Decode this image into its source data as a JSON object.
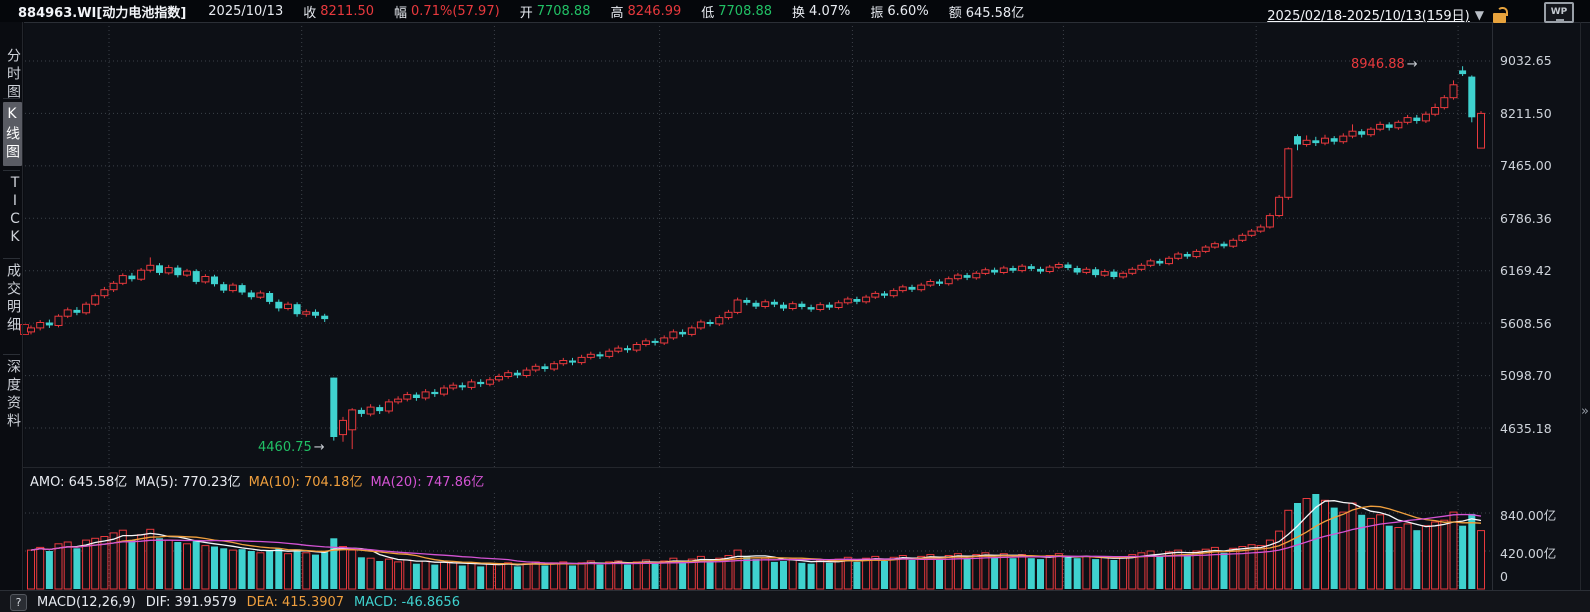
{
  "header": {
    "code": "884963.WI[动力电池指数]",
    "date": "2025/10/13",
    "fields": [
      {
        "label": "收",
        "value": "8211.50",
        "color": "red"
      },
      {
        "label": "幅",
        "value": "0.71%(57.97)",
        "color": "red"
      },
      {
        "label": "开",
        "value": "7708.88",
        "color": "green"
      },
      {
        "label": "高",
        "value": "8246.99",
        "color": "red"
      },
      {
        "label": "低",
        "value": "7708.88",
        "color": "green"
      },
      {
        "label": "换",
        "value": "4.07%",
        "color": "white"
      },
      {
        "label": "振",
        "value": "6.60%",
        "color": "white"
      },
      {
        "label": "额",
        "value": "645.58亿",
        "color": "white"
      }
    ],
    "wp_icon_text": "WP"
  },
  "sidebar": {
    "items": [
      {
        "label": "分时图",
        "active": false
      },
      {
        "label": "K线图",
        "active": true
      },
      {
        "label": "TICK",
        "active": false
      },
      {
        "label": "成交明细",
        "active": false
      },
      {
        "label": "深度资料",
        "active": false
      }
    ]
  },
  "toolbar": {
    "date_range": "2025/02/18-2025/10/13(159日)",
    "caret": "▼"
  },
  "price_pane": {
    "axis_labels": [
      "9032.65",
      "8211.50",
      "7465.00",
      "6786.36",
      "6169.42",
      "5608.56",
      "5098.70",
      "4635.18"
    ],
    "high_annotation": "8946.88",
    "low_annotation": "4460.75",
    "arrow": "→"
  },
  "volume_pane": {
    "legend": {
      "amo": "AMO: 645.58亿",
      "ma5": "MA(5): 770.23亿",
      "ma10": "MA(10): 704.18亿",
      "ma20": "MA(20): 747.86亿"
    },
    "axis_labels": [
      "840.00亿",
      "420.00亿",
      "0"
    ]
  },
  "macd_bar": {
    "help": "?",
    "name": "MACD(12,26,9)",
    "dif": "DIF: 391.9579",
    "dea": "DEA: 415.3907",
    "macd": "MACD: -46.8656"
  },
  "misc": {
    "expand_icon": "»"
  },
  "colors": {
    "up": "#e8393d",
    "down": "#3fd2cf",
    "green": "#21c065",
    "vol_ma5": "#f5f6f8",
    "vol_ma10": "#ef9f3e",
    "vol_ma20": "#d353d3",
    "grid": "#3d424a",
    "background": "#0d1016"
  },
  "chart_data": {
    "type": "candlestick",
    "title": "884963.WI 动力电池指数 日K",
    "date_range": "2025/02/18-2025/10/13",
    "days": 159,
    "scale": "log",
    "price_axis": [
      9032.65,
      8211.5,
      7465.0,
      6786.36,
      6169.42,
      5608.56,
      5098.7,
      4635.18
    ],
    "volume_axis_yi": [
      840,
      420,
      0
    ],
    "month_start_indices": [
      10,
      31,
      52,
      70,
      91,
      114,
      135,
      157
    ],
    "period_high": 8946.88,
    "period_low": 4460.75,
    "last_day": {
      "open": 7708.88,
      "high": 8246.99,
      "low": 7708.88,
      "close": 8211.5,
      "change_pct": 0.71,
      "change": 57.97,
      "turnover_pct": 4.07,
      "amplitude_pct": 6.6,
      "amount_yi": 645.58
    },
    "volume_ma_yi": {
      "ma5": 770.23,
      "ma10": 704.18,
      "ma20": 747.86
    },
    "macd": {
      "params": [
        12,
        26,
        9
      ],
      "dif": 391.9579,
      "dea": 415.3907,
      "macd": -46.8656
    },
    "candles_ohlcv": [
      [
        5520,
        5585,
        5495,
        5560,
        430
      ],
      [
        5560,
        5640,
        5535,
        5615,
        460
      ],
      [
        5615,
        5645,
        5560,
        5585,
        420
      ],
      [
        5585,
        5700,
        5565,
        5680,
        500
      ],
      [
        5680,
        5770,
        5660,
        5745,
        520
      ],
      [
        5745,
        5775,
        5690,
        5715,
        450
      ],
      [
        5715,
        5830,
        5695,
        5805,
        540
      ],
      [
        5805,
        5920,
        5785,
        5895,
        560
      ],
      [
        5895,
        5990,
        5870,
        5960,
        580
      ],
      [
        5960,
        6055,
        5935,
        6030,
        620
      ],
      [
        6030,
        6140,
        6010,
        6115,
        650
      ],
      [
        6115,
        6145,
        6050,
        6075,
        540
      ],
      [
        6075,
        6200,
        6055,
        6175,
        600
      ],
      [
        6175,
        6320,
        6150,
        6230,
        660
      ],
      [
        6230,
        6255,
        6120,
        6145,
        560
      ],
      [
        6145,
        6235,
        6125,
        6205,
        540
      ],
      [
        6205,
        6230,
        6095,
        6120,
        520
      ],
      [
        6120,
        6190,
        6100,
        6165,
        500
      ],
      [
        6165,
        6185,
        6020,
        6045,
        530
      ],
      [
        6045,
        6130,
        6025,
        6105,
        480
      ],
      [
        6105,
        6125,
        5995,
        6020,
        470
      ],
      [
        6020,
        6045,
        5925,
        5950,
        450
      ],
      [
        5950,
        6035,
        5930,
        6010,
        430
      ],
      [
        6010,
        6030,
        5905,
        5930,
        440
      ],
      [
        5930,
        5955,
        5855,
        5880,
        420
      ],
      [
        5880,
        5950,
        5860,
        5925,
        400
      ],
      [
        5925,
        5945,
        5805,
        5830,
        430
      ],
      [
        5830,
        5855,
        5730,
        5760,
        450
      ],
      [
        5760,
        5830,
        5740,
        5805,
        390
      ],
      [
        5805,
        5825,
        5675,
        5700,
        440
      ],
      [
        5700,
        5750,
        5675,
        5725,
        400
      ],
      [
        5725,
        5750,
        5660,
        5685,
        380
      ],
      [
        5685,
        5705,
        5620,
        5650,
        420
      ],
      [
        5080,
        5080,
        4530,
        4560,
        560
      ],
      [
        4580,
        4730,
        4520,
        4700,
        470
      ],
      [
        4620,
        4805,
        4460.75,
        4790,
        430
      ],
      [
        4790,
        4810,
        4730,
        4755,
        350
      ],
      [
        4755,
        4840,
        4735,
        4815,
        340
      ],
      [
        4815,
        4835,
        4755,
        4780,
        310
      ],
      [
        4780,
        4885,
        4760,
        4860,
        330
      ],
      [
        4860,
        4910,
        4840,
        4885,
        300
      ],
      [
        4885,
        4950,
        4865,
        4925,
        320
      ],
      [
        4925,
        4945,
        4870,
        4895,
        280
      ],
      [
        4895,
        4975,
        4875,
        4950,
        310
      ],
      [
        4950,
        4975,
        4905,
        4930,
        270
      ],
      [
        4930,
        5010,
        4910,
        4985,
        300
      ],
      [
        4985,
        5035,
        4965,
        5010,
        290
      ],
      [
        5010,
        5035,
        4965,
        4990,
        260
      ],
      [
        4990,
        5065,
        4970,
        5040,
        290
      ],
      [
        5040,
        5065,
        4995,
        5020,
        250
      ],
      [
        5020,
        5085,
        5000,
        5060,
        280
      ],
      [
        5060,
        5115,
        5040,
        5090,
        270
      ],
      [
        5090,
        5150,
        5070,
        5125,
        290
      ],
      [
        5125,
        5150,
        5075,
        5100,
        250
      ],
      [
        5100,
        5175,
        5080,
        5150,
        280
      ],
      [
        5150,
        5210,
        5130,
        5185,
        300
      ],
      [
        5185,
        5210,
        5135,
        5160,
        260
      ],
      [
        5160,
        5235,
        5140,
        5210,
        290
      ],
      [
        5210,
        5265,
        5190,
        5240,
        300
      ],
      [
        5240,
        5265,
        5195,
        5220,
        260
      ],
      [
        5220,
        5295,
        5200,
        5270,
        290
      ],
      [
        5270,
        5325,
        5250,
        5300,
        310
      ],
      [
        5300,
        5325,
        5255,
        5280,
        270
      ],
      [
        5280,
        5355,
        5260,
        5330,
        300
      ],
      [
        5330,
        5385,
        5310,
        5360,
        310
      ],
      [
        5360,
        5385,
        5315,
        5340,
        270
      ],
      [
        5340,
        5420,
        5320,
        5395,
        300
      ],
      [
        5395,
        5455,
        5375,
        5430,
        320
      ],
      [
        5430,
        5455,
        5385,
        5410,
        280
      ],
      [
        5410,
        5485,
        5390,
        5460,
        310
      ],
      [
        5460,
        5545,
        5440,
        5520,
        340
      ],
      [
        5520,
        5545,
        5470,
        5495,
        290
      ],
      [
        5495,
        5585,
        5475,
        5560,
        330
      ],
      [
        5560,
        5645,
        5540,
        5620,
        360
      ],
      [
        5620,
        5645,
        5575,
        5600,
        300
      ],
      [
        5600,
        5690,
        5580,
        5665,
        340
      ],
      [
        5665,
        5745,
        5645,
        5720,
        370
      ],
      [
        5720,
        5875,
        5700,
        5850,
        430
      ],
      [
        5850,
        5875,
        5795,
        5820,
        360
      ],
      [
        5820,
        5845,
        5755,
        5780,
        330
      ],
      [
        5780,
        5855,
        5760,
        5830,
        340
      ],
      [
        5830,
        5855,
        5775,
        5800,
        300
      ],
      [
        5800,
        5825,
        5735,
        5760,
        310
      ],
      [
        5760,
        5835,
        5740,
        5810,
        330
      ],
      [
        5810,
        5835,
        5750,
        5775,
        290
      ],
      [
        5775,
        5800,
        5725,
        5750,
        280
      ],
      [
        5750,
        5825,
        5730,
        5800,
        320
      ],
      [
        5800,
        5825,
        5745,
        5770,
        290
      ],
      [
        5770,
        5845,
        5750,
        5820,
        330
      ],
      [
        5820,
        5885,
        5800,
        5860,
        350
      ],
      [
        5860,
        5885,
        5805,
        5830,
        300
      ],
      [
        5830,
        5905,
        5810,
        5880,
        340
      ],
      [
        5880,
        5945,
        5860,
        5920,
        360
      ],
      [
        5920,
        5945,
        5870,
        5895,
        310
      ],
      [
        5895,
        5975,
        5875,
        5950,
        350
      ],
      [
        5950,
        6015,
        5930,
        5990,
        370
      ],
      [
        5990,
        6015,
        5935,
        5960,
        320
      ],
      [
        5960,
        6035,
        5940,
        6010,
        360
      ],
      [
        6010,
        6075,
        5990,
        6050,
        380
      ],
      [
        6050,
        6075,
        6000,
        6025,
        330
      ],
      [
        6025,
        6105,
        6005,
        6080,
        370
      ],
      [
        6080,
        6145,
        6060,
        6120,
        390
      ],
      [
        6120,
        6145,
        6065,
        6090,
        340
      ],
      [
        6090,
        6165,
        6070,
        6140,
        380
      ],
      [
        6140,
        6205,
        6120,
        6180,
        400
      ],
      [
        6180,
        6205,
        6125,
        6150,
        350
      ],
      [
        6150,
        6225,
        6130,
        6200,
        390
      ],
      [
        6200,
        6225,
        6145,
        6170,
        340
      ],
      [
        6170,
        6245,
        6150,
        6220,
        380
      ],
      [
        6220,
        6245,
        6165,
        6190,
        340
      ],
      [
        6190,
        6215,
        6135,
        6160,
        330
      ],
      [
        6160,
        6235,
        6140,
        6210,
        370
      ],
      [
        6210,
        6265,
        6190,
        6240,
        390
      ],
      [
        6240,
        6265,
        6175,
        6200,
        350
      ],
      [
        6200,
        6225,
        6125,
        6150,
        340
      ],
      [
        6150,
        6210,
        6130,
        6185,
        360
      ],
      [
        6185,
        6210,
        6095,
        6120,
        330
      ],
      [
        6120,
        6185,
        6100,
        6160,
        350
      ],
      [
        6160,
        6185,
        6075,
        6100,
        320
      ],
      [
        6100,
        6165,
        6080,
        6140,
        350
      ],
      [
        6140,
        6210,
        6120,
        6185,
        380
      ],
      [
        6185,
        6255,
        6165,
        6230,
        400
      ],
      [
        6230,
        6305,
        6210,
        6280,
        420
      ],
      [
        6280,
        6305,
        6225,
        6250,
        370
      ],
      [
        6250,
        6335,
        6230,
        6310,
        410
      ],
      [
        6310,
        6385,
        6290,
        6360,
        430
      ],
      [
        6360,
        6385,
        6305,
        6330,
        380
      ],
      [
        6330,
        6415,
        6310,
        6390,
        420
      ],
      [
        6390,
        6465,
        6370,
        6440,
        440
      ],
      [
        6440,
        6505,
        6420,
        6480,
        460
      ],
      [
        6480,
        6505,
        6425,
        6450,
        400
      ],
      [
        6450,
        6545,
        6430,
        6520,
        450
      ],
      [
        6520,
        6605,
        6500,
        6580,
        470
      ],
      [
        6580,
        6655,
        6560,
        6630,
        490
      ],
      [
        6630,
        6710,
        6610,
        6680,
        480
      ],
      [
        6680,
        6850,
        6660,
        6820,
        540
      ],
      [
        6820,
        7080,
        6800,
        7050,
        640
      ],
      [
        7050,
        7720,
        7020,
        7700,
        870
      ],
      [
        7880,
        7905,
        7680,
        7760,
        950
      ],
      [
        7760,
        7890,
        7730,
        7820,
        1000
      ],
      [
        7820,
        7870,
        7740,
        7780,
        1050
      ],
      [
        7780,
        7900,
        7750,
        7850,
        980
      ],
      [
        7850,
        7880,
        7760,
        7800,
        900
      ],
      [
        7800,
        7920,
        7770,
        7880,
        850
      ],
      [
        7880,
        8050,
        7850,
        7950,
        950
      ],
      [
        7950,
        7980,
        7860,
        7900,
        820
      ],
      [
        7900,
        8010,
        7870,
        7980,
        780
      ],
      [
        7980,
        8090,
        7950,
        8050,
        820
      ],
      [
        8050,
        8080,
        7960,
        8000,
        700
      ],
      [
        8000,
        8110,
        7970,
        8080,
        680
      ],
      [
        8080,
        8190,
        8050,
        8150,
        720
      ],
      [
        8150,
        8190,
        8060,
        8100,
        650
      ],
      [
        8100,
        8240,
        8070,
        8200,
        700
      ],
      [
        8200,
        8360,
        8170,
        8300,
        740
      ],
      [
        8300,
        8490,
        8270,
        8450,
        760
      ],
      [
        8450,
        8720,
        8420,
        8650,
        850
      ],
      [
        8880,
        8946.88,
        8790,
        8820,
        700
      ],
      [
        8780,
        8800,
        8080,
        8153.53,
        830
      ],
      [
        7708.88,
        8246.99,
        7708.88,
        8211.5,
        645.58
      ]
    ]
  }
}
